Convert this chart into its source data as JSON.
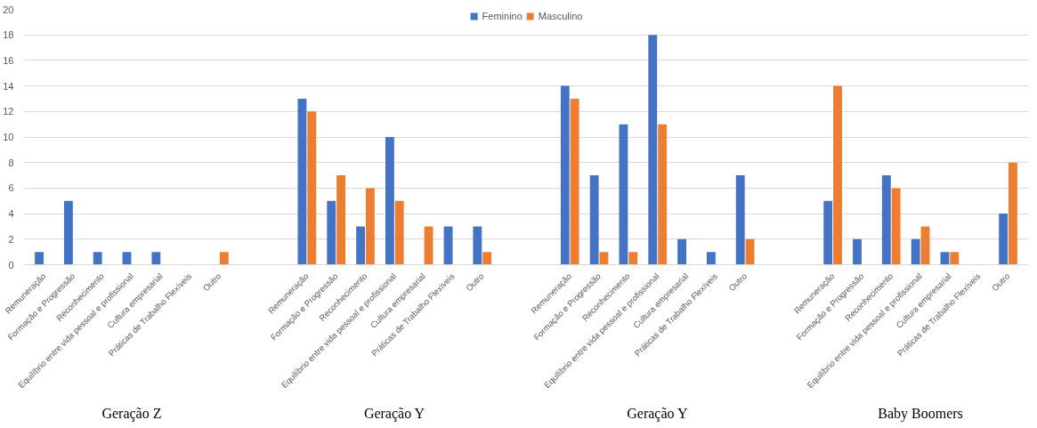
{
  "chart_data": {
    "type": "bar",
    "categories": [
      "Remuneração",
      "Formação e Progressão",
      "Reconhecimento",
      "Equilíbrio entre vida pessoal e profissional",
      "Cultura empresarial",
      "Práticas de Trabalho Flexíveis",
      "Outro",
      null,
      null,
      "Remuneração",
      "Formação e Progressão",
      "Reconhecimento",
      "Equilíbrio entre vida pessoal e profissional",
      "Cultura empresarial",
      "Práticas de Trabalho Flexíveis",
      "Outro",
      null,
      null,
      "Remuneração",
      "Formação e Progressão",
      "Reconhecimento",
      "Equilíbrio entre vida pessoal e profissional",
      "Cultura empresarial",
      "Práticas de Trabalho Flexíveis",
      "Outro",
      null,
      null,
      "Remuneração",
      "Formação e Progressão",
      "Reconhecimento",
      "Equilíbrio entre vida pessoal e profissional",
      "Cultura empresarial",
      "Práticas de Trabalho Flexíveis",
      "Outro"
    ],
    "series": [
      {
        "name": "Feminino",
        "color": "#4472c4",
        "values": [
          1,
          5,
          1,
          1,
          1,
          0,
          0,
          null,
          null,
          13,
          5,
          3,
          10,
          0,
          3,
          3,
          null,
          null,
          14,
          7,
          11,
          18,
          2,
          1,
          7,
          null,
          null,
          5,
          2,
          7,
          2,
          1,
          0,
          4
        ]
      },
      {
        "name": "Masculino",
        "color": "#ed7d31",
        "values": [
          0,
          0,
          0,
          0,
          0,
          0,
          1,
          null,
          null,
          12,
          7,
          6,
          5,
          3,
          0,
          1,
          null,
          null,
          13,
          1,
          1,
          11,
          0,
          0,
          2,
          null,
          null,
          14,
          0,
          6,
          3,
          1,
          0,
          8
        ]
      }
    ],
    "annotations": [
      "Geração Z",
      "Geração Y",
      "Geração Y",
      "Baby Boomers"
    ],
    "ylim": [
      0,
      20
    ],
    "yticks": [
      0,
      2,
      4,
      6,
      8,
      10,
      12,
      14,
      16,
      18,
      20
    ],
    "grid": "y",
    "legend": "top"
  }
}
